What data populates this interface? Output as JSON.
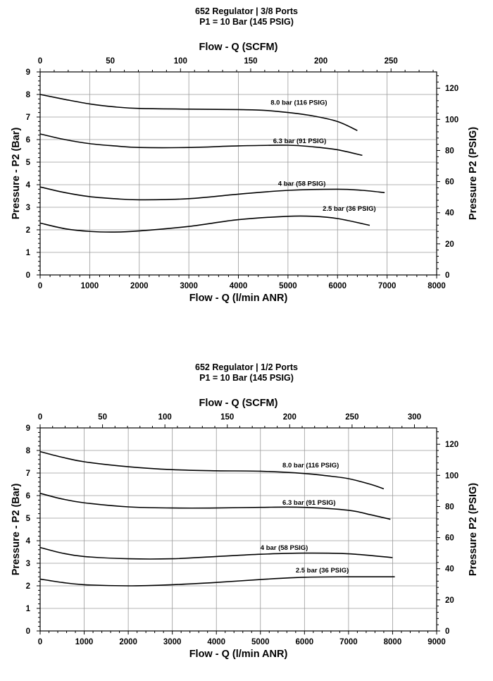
{
  "chart_data": [
    {
      "type": "line",
      "title": "652 Regulator | 3/8 Ports",
      "subtitle": "P1 = 10 Bar (145 PSIG)",
      "xlabel": "Flow - Q (l/min ANR)",
      "x2label": "Flow - Q (SCFM)",
      "ylabel": "Pressure - P2 (Bar)",
      "y2label": "Pressure P2 (PSIG)",
      "xlim": [
        0,
        8000
      ],
      "ylim": [
        0,
        9
      ],
      "x2lim": [
        0,
        282.5
      ],
      "y2lim": [
        0,
        130.5
      ],
      "x_ticks": [
        "0",
        "1000",
        "2000",
        "3000",
        "4000",
        "5000",
        "6000",
        "7000",
        "8000"
      ],
      "y_ticks": [
        "0",
        "1",
        "2",
        "3",
        "4",
        "5",
        "6",
        "7",
        "8",
        "9"
      ],
      "x2_ticks": [
        "0",
        "50",
        "100",
        "150",
        "200",
        "250"
      ],
      "x2_tick_values": [
        0,
        50,
        100,
        150,
        200,
        250
      ],
      "y2_ticks": [
        "0",
        "20",
        "40",
        "60",
        "80",
        "100",
        "120"
      ],
      "y2_tick_values": [
        0,
        20,
        40,
        60,
        80,
        100,
        120
      ],
      "grid": true,
      "series": [
        {
          "name": "8.0 bar (116 PSIG)",
          "label_at": [
            4650,
            7.55
          ],
          "x": [
            0,
            500,
            1000,
            1500,
            2000,
            3000,
            4000,
            4500,
            5000,
            5500,
            6000,
            6400
          ],
          "y": [
            8.0,
            7.78,
            7.58,
            7.45,
            7.38,
            7.35,
            7.33,
            7.3,
            7.2,
            7.05,
            6.8,
            6.4
          ]
        },
        {
          "name": "6.3 bar (91 PSIG)",
          "label_at": [
            4700,
            5.85
          ],
          "x": [
            0,
            500,
            1000,
            1500,
            2000,
            3000,
            4000,
            5000,
            5500,
            6000,
            6500
          ],
          "y": [
            6.25,
            6.0,
            5.82,
            5.72,
            5.65,
            5.65,
            5.72,
            5.75,
            5.68,
            5.55,
            5.3
          ]
        },
        {
          "name": "4 bar (58 PSIG)",
          "label_at": [
            4800,
            3.95
          ],
          "x": [
            0,
            500,
            1000,
            1500,
            2000,
            3000,
            4000,
            5000,
            6000,
            6500,
            6950
          ],
          "y": [
            3.9,
            3.65,
            3.47,
            3.38,
            3.33,
            3.38,
            3.58,
            3.75,
            3.8,
            3.75,
            3.65
          ]
        },
        {
          "name": "2.5 bar (36 PSIG)",
          "label_at": [
            5700,
            2.85
          ],
          "x": [
            0,
            500,
            1000,
            1500,
            2000,
            3000,
            4000,
            5000,
            5500,
            6000,
            6650
          ],
          "y": [
            2.3,
            2.05,
            1.93,
            1.9,
            1.95,
            2.15,
            2.45,
            2.6,
            2.6,
            2.5,
            2.2
          ]
        }
      ]
    },
    {
      "type": "line",
      "title": "652 Regulator | 1/2 Ports",
      "subtitle": "P1 = 10 Bar (145 PSIG)",
      "xlabel": "Flow - Q (l/min ANR)",
      "x2label": "Flow - Q (SCFM)",
      "ylabel": "Pressure - P2 (Bar)",
      "y2label": "Pressure P2 (PSIG)",
      "xlim": [
        0,
        9000
      ],
      "ylim": [
        0,
        9
      ],
      "x2lim": [
        0,
        317.8
      ],
      "y2lim": [
        0,
        130.5
      ],
      "x_ticks": [
        "0",
        "1000",
        "2000",
        "3000",
        "4000",
        "5000",
        "6000",
        "7000",
        "8000",
        "9000"
      ],
      "y_ticks": [
        "0",
        "1",
        "2",
        "3",
        "4",
        "5",
        "6",
        "7",
        "8",
        "9"
      ],
      "x2_ticks": [
        "0",
        "50",
        "100",
        "150",
        "200",
        "250",
        "300"
      ],
      "x2_tick_values": [
        0,
        50,
        100,
        150,
        200,
        250,
        300
      ],
      "y2_ticks": [
        "0",
        "20",
        "40",
        "60",
        "80",
        "100",
        "120"
      ],
      "y2_tick_values": [
        0,
        20,
        40,
        60,
        80,
        100,
        120
      ],
      "grid": true,
      "series": [
        {
          "name": "8.0 bar (116 PSIG)",
          "label_at": [
            5500,
            7.25
          ],
          "x": [
            0,
            500,
            1000,
            2000,
            3000,
            4000,
            5000,
            6000,
            6500,
            7000,
            7500,
            7800
          ],
          "y": [
            7.95,
            7.7,
            7.5,
            7.28,
            7.15,
            7.1,
            7.08,
            6.98,
            6.88,
            6.75,
            6.5,
            6.3
          ]
        },
        {
          "name": "6.3 bar (91 PSIG)",
          "label_at": [
            5500,
            5.6
          ],
          "x": [
            0,
            500,
            1000,
            2000,
            3000,
            4000,
            5000,
            6000,
            7000,
            7500,
            7950
          ],
          "y": [
            6.1,
            5.85,
            5.68,
            5.5,
            5.45,
            5.45,
            5.48,
            5.48,
            5.35,
            5.15,
            4.95
          ]
        },
        {
          "name": "4 bar (58 PSIG)",
          "label_at": [
            5000,
            3.6
          ],
          "x": [
            0,
            500,
            1000,
            2000,
            3000,
            4000,
            5000,
            6000,
            7000,
            8000
          ],
          "y": [
            3.7,
            3.45,
            3.3,
            3.2,
            3.2,
            3.3,
            3.4,
            3.45,
            3.42,
            3.25
          ]
        },
        {
          "name": "2.5 bar (36 PSIG)",
          "label_at": [
            5800,
            2.6
          ],
          "x": [
            0,
            500,
            1000,
            2000,
            3000,
            4000,
            5000,
            6000,
            7000,
            8050
          ],
          "y": [
            2.3,
            2.15,
            2.05,
            2.0,
            2.05,
            2.15,
            2.28,
            2.38,
            2.4,
            2.4
          ]
        }
      ]
    }
  ]
}
